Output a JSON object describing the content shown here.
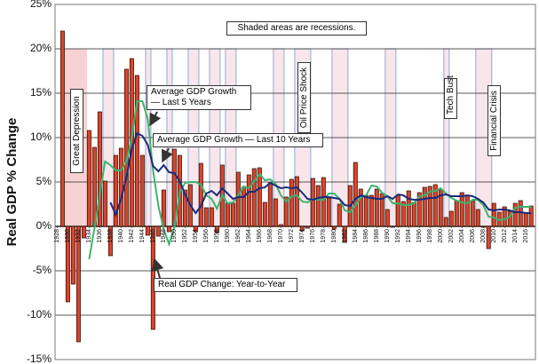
{
  "chart_data": {
    "type": "bar",
    "y_axis_label": "Real GDP % Change",
    "note": "Shaded areas are recessions.",
    "annotations": [
      "Great Depression",
      "Oil Price Shock",
      "Tech Bust",
      "Financial Crisis"
    ],
    "x": [
      1929,
      1930,
      1931,
      1932,
      1933,
      1934,
      1935,
      1936,
      1937,
      1938,
      1939,
      1940,
      1941,
      1942,
      1943,
      1944,
      1945,
      1946,
      1947,
      1948,
      1949,
      1950,
      1951,
      1952,
      1953,
      1954,
      1955,
      1956,
      1957,
      1958,
      1959,
      1960,
      1961,
      1962,
      1963,
      1964,
      1965,
      1966,
      1967,
      1968,
      1969,
      1970,
      1971,
      1972,
      1973,
      1974,
      1975,
      1976,
      1977,
      1978,
      1979,
      1980,
      1981,
      1982,
      1983,
      1984,
      1985,
      1986,
      1987,
      1988,
      1989,
      1990,
      1991,
      1992,
      1993,
      1994,
      1995,
      1996,
      1997,
      1998,
      1999,
      2000,
      2001,
      2002,
      2003,
      2004,
      2005,
      2006,
      2007,
      2008,
      2009,
      2010,
      2011,
      2012,
      2013,
      2014,
      2015,
      2016,
      2017
    ],
    "xlim": [
      1927.6,
      2017.8
    ],
    "xticks": [
      1928,
      1930,
      1932,
      1934,
      1936,
      1938,
      1940,
      1942,
      1944,
      1946,
      1948,
      1950,
      1952,
      1954,
      1956,
      1958,
      1960,
      1962,
      1964,
      1966,
      1968,
      1970,
      1972,
      1974,
      1976,
      1978,
      1980,
      1982,
      1984,
      1986,
      1988,
      1990,
      1992,
      1994,
      1996,
      1998,
      2000,
      2002,
      2004,
      2006,
      2008,
      2010,
      2012,
      2014,
      2016
    ],
    "ylim": [
      -15,
      25
    ],
    "yticks": [
      {
        "value": -15,
        "label": "-15%"
      },
      {
        "value": -10,
        "label": "-10%"
      },
      {
        "value": -5,
        "label": "-5%"
      },
      {
        "value": 0,
        "label": "0%"
      },
      {
        "value": 5,
        "label": "5%"
      },
      {
        "value": 10,
        "label": "10%"
      },
      {
        "value": 15,
        "label": "15%"
      },
      {
        "value": 20,
        "label": "20%"
      },
      {
        "value": 25,
        "label": "25%"
      }
    ],
    "grid": true,
    "recessions": [
      [
        1929,
        1933
      ],
      [
        1937,
        1938
      ],
      [
        1945,
        1945
      ],
      [
        1949,
        1949
      ],
      [
        1953,
        1954
      ],
      [
        1957,
        1958
      ],
      [
        1960,
        1961
      ],
      [
        1969,
        1970
      ],
      [
        1973,
        1975
      ],
      [
        1980,
        1982
      ],
      [
        1990,
        1991
      ],
      [
        2001,
        2001
      ],
      [
        2007,
        2009
      ]
    ],
    "series": [
      {
        "name": "Real GDP Change: Year-to-Year",
        "type": "bar",
        "color": "#d9442b",
        "values": [
          22,
          -8.5,
          -6.5,
          -13,
          -1.3,
          10.8,
          8.9,
          12.9,
          5.1,
          -3.3,
          8.0,
          8.8,
          17.7,
          18.9,
          17.0,
          8.0,
          -1.0,
          -11.6,
          -1.1,
          4.1,
          -0.6,
          8.7,
          8.0,
          4.1,
          4.7,
          -0.6,
          7.1,
          2.1,
          2.1,
          -0.7,
          6.9,
          2.6,
          2.6,
          6.1,
          4.4,
          5.8,
          6.5,
          6.6,
          2.7,
          4.9,
          3.1,
          0.2,
          3.3,
          5.3,
          5.6,
          -0.5,
          -0.2,
          5.4,
          4.6,
          5.5,
          3.2,
          -0.3,
          2.5,
          -1.8,
          4.6,
          7.2,
          4.2,
          3.5,
          3.5,
          4.2,
          3.7,
          1.9,
          -0.1,
          3.5,
          2.8,
          4.0,
          2.7,
          3.8,
          4.4,
          4.5,
          4.7,
          4.1,
          1.0,
          1.7,
          2.9,
          3.8,
          3.5,
          2.9,
          1.9,
          -0.1,
          -2.5,
          2.6,
          1.6,
          2.2,
          1.7,
          2.6,
          2.9,
          1.5,
          2.3
        ]
      },
      {
        "name": "Average GDP Growth — Last 5 Years",
        "type": "line",
        "color": "#3db46d",
        "values": [
          null,
          null,
          null,
          null,
          null,
          -3.7,
          -0.2,
          3.7,
          7.3,
          6.9,
          6.3,
          6.3,
          7.3,
          10.0,
          14.1,
          14.1,
          12.1,
          6.3,
          2.3,
          -0.3,
          -2.0,
          -0.1,
          3.8,
          4.9,
          5.0,
          5.0,
          4.7,
          3.5,
          3.1,
          2.0,
          3.5,
          2.6,
          2.7,
          3.5,
          4.5,
          4.3,
          5.1,
          5.9,
          5.2,
          5.3,
          4.8,
          3.5,
          2.8,
          3.4,
          3.5,
          2.8,
          2.7,
          3.1,
          3.0,
          3.0,
          3.7,
          3.7,
          3.1,
          1.8,
          1.6,
          2.4,
          3.3,
          3.5,
          4.6,
          4.5,
          3.8,
          3.4,
          2.6,
          2.6,
          2.4,
          2.4,
          2.6,
          3.4,
          3.5,
          3.9,
          4.0,
          4.3,
          3.7,
          3.2,
          2.9,
          2.7,
          2.6,
          3.0,
          3.0,
          2.4,
          1.1,
          1.0,
          0.7,
          0.8,
          1.1,
          2.1,
          2.2,
          2.2,
          2.2
        ]
      },
      {
        "name": "Average GDP Growth — Last 10 Years",
        "type": "line",
        "color": "#1b2a7a",
        "values": [
          null,
          null,
          null,
          null,
          null,
          null,
          null,
          null,
          null,
          2.7,
          1.3,
          3.1,
          5.5,
          8.7,
          10.5,
          10.2,
          9.2,
          6.8,
          6.2,
          6.9,
          6.1,
          6.0,
          5.1,
          3.6,
          2.4,
          1.5,
          2.3,
          3.7,
          4.0,
          3.5,
          4.3,
          3.7,
          3.1,
          3.3,
          3.3,
          3.9,
          3.9,
          4.3,
          4.4,
          4.9,
          4.6,
          4.3,
          4.4,
          4.3,
          4.4,
          3.8,
          3.1,
          3.0,
          3.2,
          3.3,
          3.3,
          3.2,
          3.1,
          2.4,
          2.3,
          3.1,
          3.5,
          3.3,
          3.2,
          3.1,
          3.1,
          3.4,
          3.1,
          3.6,
          3.5,
          3.1,
          3.0,
          3.0,
          3.1,
          3.2,
          3.2,
          3.5,
          3.6,
          3.4,
          3.4,
          3.4,
          3.5,
          3.4,
          3.1,
          2.7,
          1.9,
          1.8,
          1.9,
          1.9,
          1.8,
          1.6,
          1.6,
          1.5,
          1.5
        ]
      }
    ]
  }
}
